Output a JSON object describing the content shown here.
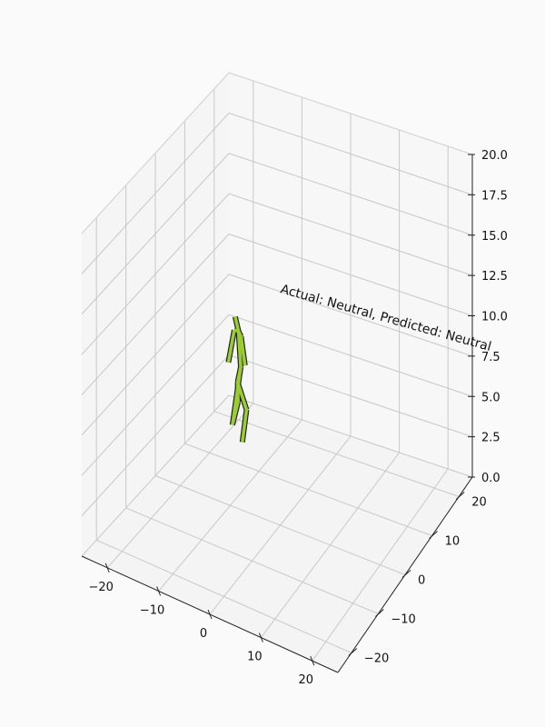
{
  "chart_data": {
    "type": "scatter3d",
    "annotation": "Actual: Neutral, Predicted: Neutral",
    "xlim": [
      -25,
      25
    ],
    "ylim": [
      -25,
      25
    ],
    "zlim": [
      0,
      20
    ],
    "grid": true,
    "x_ticks": [
      "−20",
      "−10",
      "0",
      "10",
      "20"
    ],
    "y_ticks": [
      "−20",
      "−10",
      "0",
      "10",
      "20"
    ],
    "z_ticks": [
      "0.0",
      "2.5",
      "5.0",
      "7.5",
      "10.0",
      "12.5",
      "15.0",
      "17.5",
      "20.0"
    ],
    "skeleton": {
      "color": "#9acd32",
      "edge_color": "#222222",
      "joints": [
        {
          "name": "head",
          "pos": [
            -18.1,
            15.6,
            7.5
          ]
        },
        {
          "name": "neck",
          "pos": [
            -17.6,
            15.9,
            6.6
          ]
        },
        {
          "name": "l_shoulder",
          "pos": [
            -18.4,
            15.8,
            6.6
          ]
        },
        {
          "name": "r_shoulder",
          "pos": [
            -16.9,
            15.6,
            6.4
          ]
        },
        {
          "name": "l_hand",
          "pos": [
            -19.3,
            15.3,
            4.6
          ]
        },
        {
          "name": "r_hand",
          "pos": [
            -16.1,
            15.6,
            4.7
          ]
        },
        {
          "name": "spine",
          "pos": [
            -17.2,
            16.0,
            4.4
          ]
        },
        {
          "name": "pelvis",
          "pos": [
            -17.6,
            15.6,
            3.5
          ]
        },
        {
          "name": "l_knee",
          "pos": [
            -17.5,
            15.6,
            2.3
          ]
        },
        {
          "name": "r_knee",
          "pos": [
            -16.2,
            16.3,
            1.8
          ]
        },
        {
          "name": "l_foot",
          "pos": [
            -18.3,
            15.0,
            0.9
          ]
        },
        {
          "name": "r_foot",
          "pos": [
            -16.4,
            15.2,
            0.0
          ]
        }
      ],
      "bones": [
        [
          0,
          1
        ],
        [
          1,
          2
        ],
        [
          1,
          3
        ],
        [
          2,
          4
        ],
        [
          3,
          5
        ],
        [
          1,
          6
        ],
        [
          6,
          7
        ],
        [
          7,
          8
        ],
        [
          7,
          9
        ],
        [
          8,
          10
        ],
        [
          9,
          11
        ],
        [
          6,
          10
        ]
      ]
    }
  }
}
